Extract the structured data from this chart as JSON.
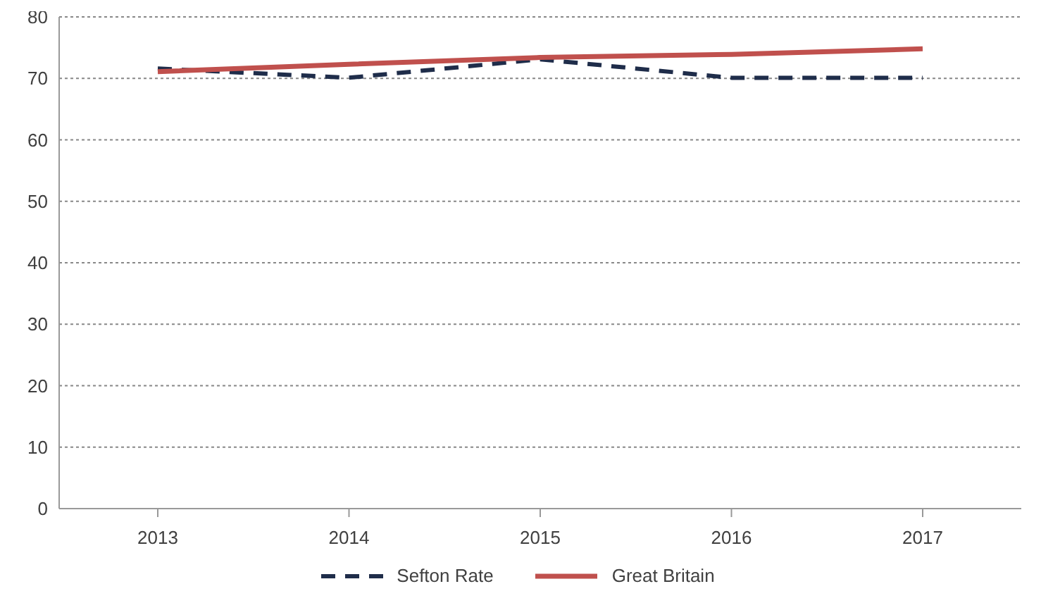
{
  "chart_data": {
    "type": "line",
    "categories": [
      "2013",
      "2014",
      "2015",
      "2016",
      "2017"
    ],
    "series": [
      {
        "name": "Sefton Rate",
        "color": "#1f2d4a",
        "line_style": "dashed",
        "values": [
          71.6,
          70.1,
          73.1,
          70.1,
          70.1
        ]
      },
      {
        "name": "Great Britain",
        "color": "#c0504d",
        "line_style": "solid",
        "values": [
          71.1,
          72.3,
          73.4,
          73.9,
          74.8
        ]
      }
    ],
    "ylim": [
      0,
      80
    ],
    "yticks": [
      0,
      10,
      20,
      30,
      40,
      50,
      60,
      70,
      80
    ],
    "grid": "y",
    "legend": "bottom",
    "marker": "none"
  }
}
